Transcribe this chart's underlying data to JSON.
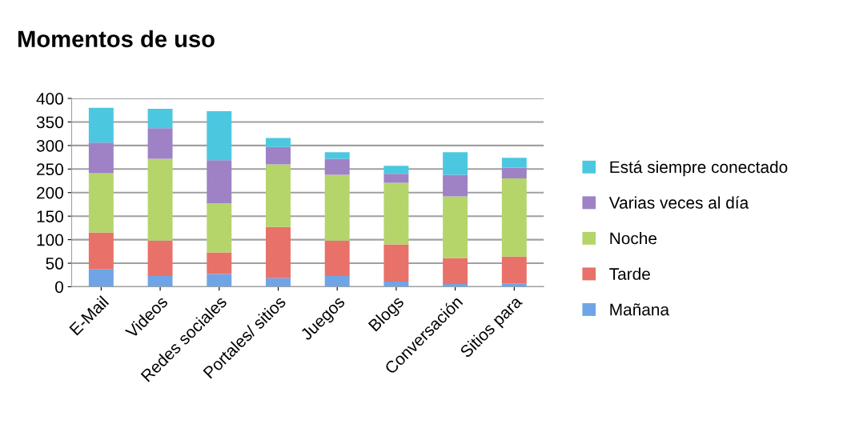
{
  "chart_data": {
    "type": "bar",
    "title": "Momentos de uso",
    "stacked": true,
    "categories": [
      "E-Mail",
      "Videos",
      "Redes sociales",
      "Portales/ sitios",
      "Juegos",
      "Blogs",
      "Conversación",
      "Sitios para"
    ],
    "series": [
      {
        "name": "Mañana",
        "color": "#6fa5e6",
        "values": [
          37,
          23,
          27,
          18,
          23,
          11,
          6,
          7
        ]
      },
      {
        "name": "Tarde",
        "color": "#e8716a",
        "values": [
          78,
          75,
          46,
          109,
          75,
          79,
          55,
          57
        ]
      },
      {
        "name": "Noche",
        "color": "#b5d56a",
        "values": [
          126,
          174,
          104,
          133,
          140,
          131,
          131,
          166
        ]
      },
      {
        "name": "Varias veces al día",
        "color": "#9e82c5",
        "values": [
          65,
          65,
          92,
          37,
          34,
          19,
          46,
          23
        ]
      },
      {
        "name": "Está siempre conectado",
        "color": "#4bc8e0",
        "values": [
          74,
          41,
          104,
          19,
          14,
          17,
          48,
          21
        ]
      }
    ],
    "ylim": [
      0,
      400
    ],
    "yticks": [
      0,
      50,
      100,
      150,
      200,
      250,
      300,
      350,
      400
    ],
    "grid": "y",
    "legend": "right"
  }
}
